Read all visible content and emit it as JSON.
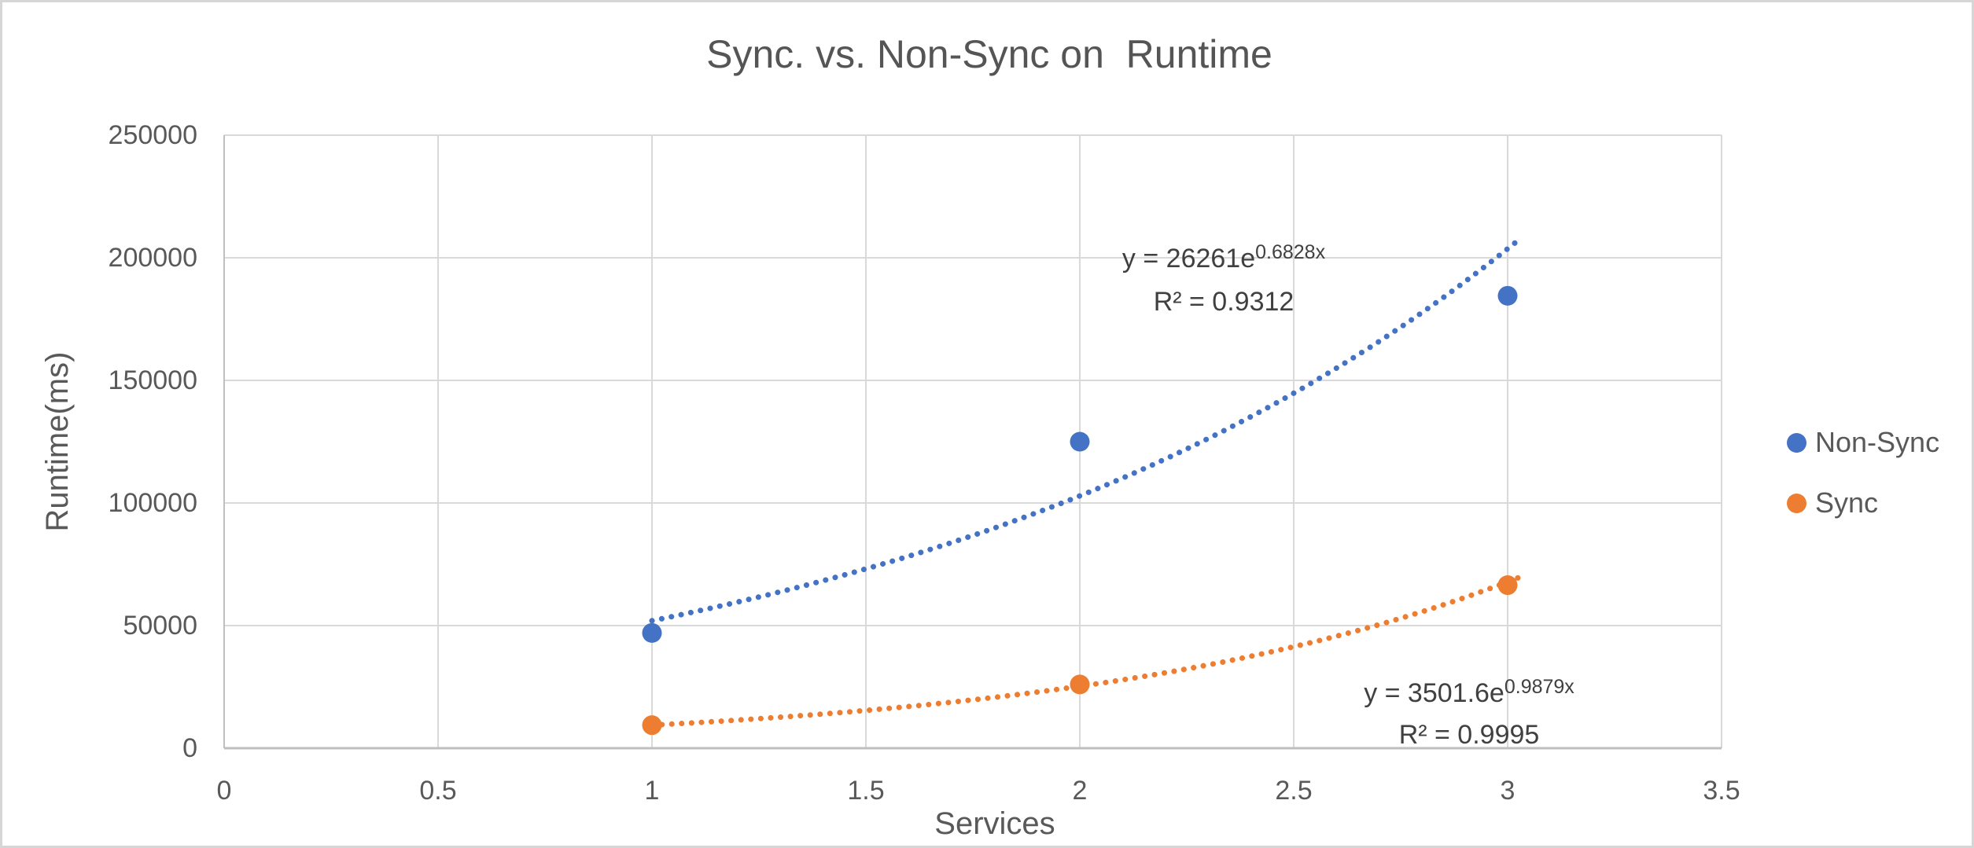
{
  "title": "Sync. vs. Non-Sync on  Runtime",
  "chart_data": {
    "type": "scatter",
    "title": "Sync. vs. Non-Sync on  Runtime",
    "xlabel": "Services",
    "ylabel": "Runtime(ms)",
    "xlim": [
      0,
      3.5
    ],
    "ylim": [
      0,
      250000
    ],
    "x_ticks": [
      0,
      0.5,
      1,
      1.5,
      2,
      2.5,
      3,
      3.5
    ],
    "y_ticks": [
      0,
      50000,
      100000,
      150000,
      200000,
      250000
    ],
    "grid": true,
    "legend_position": "right",
    "series": [
      {
        "name": "Non-Sync",
        "color": "#4472C4",
        "points": [
          [
            1,
            47000
          ],
          [
            2,
            125000
          ],
          [
            3,
            184500
          ]
        ],
        "trendline": {
          "type": "exponential",
          "a": 26261,
          "b": 0.6828,
          "x_start": 1,
          "x_end": 3.02,
          "equation_base": "y = 26261e",
          "equation_exponent": "0.6828x",
          "r_squared": "R² = 0.9312"
        }
      },
      {
        "name": "Sync",
        "color": "#ED7D31",
        "points": [
          [
            1,
            9400
          ],
          [
            2,
            26000
          ],
          [
            3,
            66500
          ]
        ],
        "trendline": {
          "type": "exponential",
          "a": 3501.6,
          "b": 0.9879,
          "x_start": 1,
          "x_end": 3.03,
          "equation_base": "y = 3501.6e",
          "equation_exponent": "0.9879x",
          "r_squared": "R² = 0.9995"
        }
      }
    ]
  },
  "legend": {
    "items": [
      {
        "label": "Non-Sync",
        "color": "#4472C4"
      },
      {
        "label": "Sync",
        "color": "#ED7D31"
      }
    ]
  },
  "colors": {
    "grid": "#D9D9D9",
    "axis": "#BFBFBF",
    "text": "#595959",
    "equation_text": "#404040",
    "border": "#D6D6D6",
    "background": "#FFFFFF"
  }
}
